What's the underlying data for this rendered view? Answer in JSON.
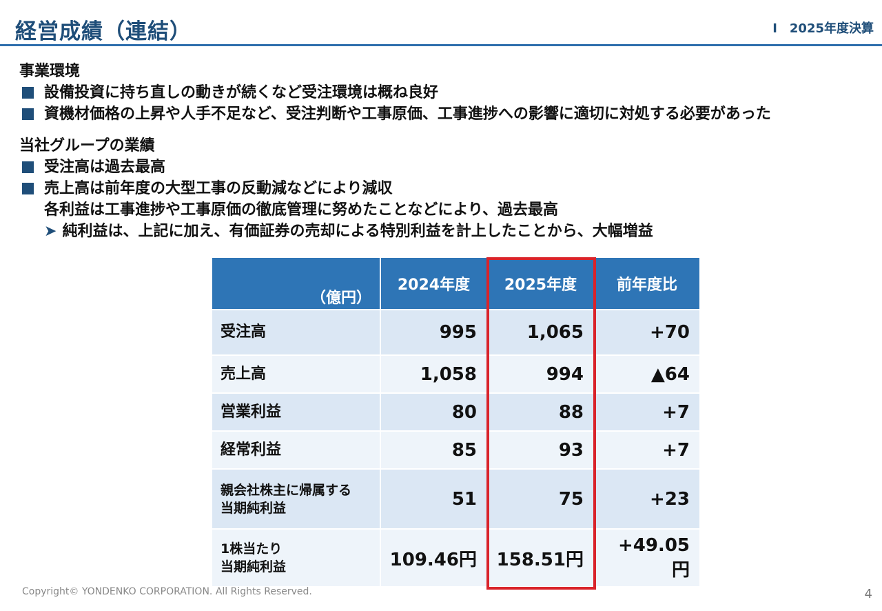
{
  "header": {
    "title": "経営成績（連結）",
    "section": "Ⅰ　2025年度決算"
  },
  "environment": {
    "heading": "事業環境",
    "bullets": [
      "設備投資に持ち直しの動きが続くなど受注環境は概ね良好",
      "資機材価格の上昇や人手不足など、受注判断や工事原価、工事進捗への影響に適切に対処する必要があった"
    ]
  },
  "performance": {
    "heading": "当社グループの業績",
    "bullets": [
      "受注高は過去最高",
      "売上高は前年度の大型工事の反動減などにより減収"
    ],
    "continuation": "各利益は工事進捗や工事原価の徹底管理に努めたことなどにより、過去最高",
    "arrow_symbol": "➤",
    "arrow_note": "純利益は、上記に加え、有価証券の売却による特別利益を計上したことから、大幅増益"
  },
  "table": {
    "unit": "（億円）",
    "columns": [
      "2024年度",
      "2025年度",
      "前年度比"
    ],
    "rows": [
      {
        "label": "受注高",
        "y2024": "995",
        "y2025": "1,065",
        "diff": "+70"
      },
      {
        "label": "売上高",
        "y2024": "1,058",
        "y2025": "994",
        "diff": "▲64"
      },
      {
        "label": "営業利益",
        "y2024": "80",
        "y2025": "88",
        "diff": "+7"
      },
      {
        "label": "経常利益",
        "y2024": "85",
        "y2025": "93",
        "diff": "+7"
      },
      {
        "label_line1": "親会社株主に帰属する",
        "label_line2": "当期純利益",
        "y2024": "51",
        "y2025": "75",
        "diff": "+23"
      },
      {
        "label_line1": "1株当たり",
        "label_line2": "当期純利益",
        "y2024": "109.46円",
        "y2025": "158.51円",
        "diff": "+49.05円"
      }
    ],
    "highlight_color": "#d9232a"
  },
  "footer": {
    "copyright": "Copyright© YONDENKO CORPORATION. All Rights Reserved.",
    "page": "4"
  }
}
